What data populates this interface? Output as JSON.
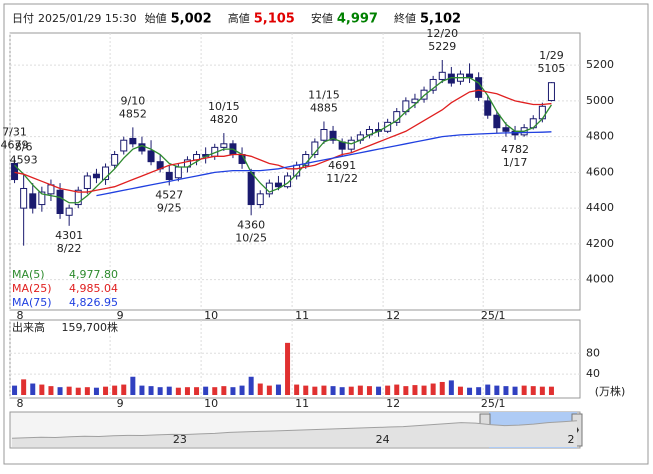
{
  "header": {
    "date_label": "日付",
    "date": "2025/01/29 15:30",
    "fields": [
      {
        "label": "始値",
        "value": "5,002",
        "color": "#000000"
      },
      {
        "label": "高値",
        "value": "5,105",
        "color": "#e00000"
      },
      {
        "label": "安値",
        "value": "4,997",
        "color": "#008000"
      },
      {
        "label": "終値",
        "value": "5,102",
        "color": "#000000"
      }
    ]
  },
  "chart_data": [
    {
      "type": "candlestick",
      "categories": [
        "8",
        null,
        null,
        null,
        null,
        null,
        null,
        null,
        null,
        null,
        null,
        "9",
        null,
        null,
        null,
        null,
        null,
        null,
        null,
        null,
        null,
        "10",
        null,
        null,
        null,
        null,
        null,
        null,
        null,
        null,
        null,
        "11",
        null,
        null,
        null,
        null,
        null,
        null,
        null,
        null,
        null,
        "12",
        null,
        null,
        null,
        null,
        null,
        null,
        null,
        null,
        null,
        null,
        "25/1",
        null,
        null,
        null,
        null,
        null,
        null,
        null
      ],
      "open": [
        4650,
        4400,
        4480,
        4420,
        4480,
        4500,
        4360,
        4420,
        4510,
        4590,
        4560,
        4640,
        4720,
        4790,
        4760,
        4720,
        4660,
        4600,
        4570,
        4630,
        4670,
        4700,
        4690,
        4740,
        4760,
        4700,
        4600,
        4420,
        4480,
        4540,
        4520,
        4580,
        4640,
        4700,
        4780,
        4830,
        4770,
        4730,
        4780,
        4810,
        4840,
        4830,
        4880,
        4940,
        4990,
        5010,
        5060,
        5120,
        5150,
        5110,
        5150,
        5130,
        5000,
        4920,
        4850,
        4830,
        4810,
        4850,
        4900,
        5002
      ],
      "high": [
        4679,
        4593,
        4540,
        4520,
        4560,
        4540,
        4420,
        4520,
        4600,
        4620,
        4650,
        4720,
        4800,
        4852,
        4800,
        4780,
        4700,
        4640,
        4650,
        4690,
        4720,
        4740,
        4760,
        4820,
        4780,
        4740,
        4620,
        4500,
        4560,
        4580,
        4600,
        4660,
        4720,
        4790,
        4885,
        4860,
        4790,
        4800,
        4830,
        4860,
        4880,
        4900,
        4960,
        5020,
        5040,
        5080,
        5140,
        5229,
        5190,
        5170,
        5210,
        5160,
        5030,
        4940,
        4880,
        4860,
        4870,
        4920,
        4990,
        5105
      ],
      "low": [
        4540,
        4190,
        4370,
        4380,
        4440,
        4340,
        4301,
        4400,
        4480,
        4540,
        4530,
        4620,
        4700,
        4740,
        4700,
        4640,
        4600,
        4527,
        4550,
        4600,
        4640,
        4650,
        4670,
        4720,
        4680,
        4620,
        4360,
        4400,
        4460,
        4500,
        4510,
        4560,
        4620,
        4680,
        4760,
        4760,
        4691,
        4710,
        4760,
        4790,
        4800,
        4820,
        4860,
        4920,
        4960,
        4990,
        5040,
        5100,
        5080,
        5090,
        5100,
        5000,
        4900,
        4820,
        4800,
        4782,
        4800,
        4840,
        4880,
        4997
      ],
      "close": [
        4560,
        4510,
        4400,
        4490,
        4530,
        4370,
        4400,
        4500,
        4580,
        4570,
        4630,
        4700,
        4780,
        4760,
        4720,
        4660,
        4620,
        4560,
        4630,
        4670,
        4700,
        4690,
        4740,
        4760,
        4700,
        4650,
        4420,
        4480,
        4540,
        4520,
        4580,
        4640,
        4700,
        4770,
        4840,
        4780,
        4730,
        4780,
        4810,
        4840,
        4830,
        4880,
        4940,
        5000,
        5010,
        5060,
        5120,
        5160,
        5100,
        5150,
        5130,
        5020,
        4920,
        4850,
        4830,
        4810,
        4850,
        4900,
        4970,
        5102
      ],
      "series": [
        {
          "name": "MA(5)",
          "color": "#2e8b2e",
          "legend_value": "4,977.80",
          "values": [
            4640,
            4590,
            4530,
            4480,
            4470,
            4460,
            4430,
            4430,
            4470,
            4520,
            4570,
            4620,
            4680,
            4730,
            4750,
            4730,
            4700,
            4650,
            4630,
            4630,
            4660,
            4690,
            4710,
            4730,
            4730,
            4700,
            4600,
            4540,
            4490,
            4510,
            4540,
            4590,
            4650,
            4710,
            4770,
            4790,
            4770,
            4760,
            4780,
            4810,
            4830,
            4860,
            4890,
            4940,
            4980,
            5030,
            5070,
            5110,
            5130,
            5130,
            5130,
            5100,
            5030,
            4940,
            4870,
            4830,
            4830,
            4850,
            4900,
            4977.8
          ]
        },
        {
          "name": "MA(25)",
          "color": "#e02020",
          "legend_value": "4,985.04",
          "values": [
            4600,
            4590,
            4570,
            4550,
            4530,
            4510,
            4500,
            4490,
            4490,
            4500,
            4510,
            4520,
            4540,
            4560,
            4580,
            4600,
            4620,
            4640,
            4650,
            4660,
            4670,
            4680,
            4690,
            4690,
            4700,
            4700,
            4690,
            4670,
            4650,
            4640,
            4620,
            4620,
            4630,
            4640,
            4660,
            4680,
            4700,
            4710,
            4730,
            4750,
            4770,
            4790,
            4810,
            4830,
            4860,
            4890,
            4920,
            4950,
            4990,
            5020,
            5050,
            5060,
            5050,
            5040,
            5020,
            5000,
            4990,
            4980,
            4980,
            4985.04
          ]
        },
        {
          "name": "MA(75)",
          "color": "#2040e0",
          "legend_value": "4,826.95",
          "values": [
            null,
            null,
            null,
            null,
            null,
            null,
            null,
            null,
            null,
            4470,
            4480,
            4490,
            4500,
            4510,
            4520,
            4530,
            4540,
            4550,
            4560,
            4570,
            4580,
            4590,
            4600,
            4605,
            4610,
            4610,
            4610,
            4610,
            4615,
            4620,
            4630,
            4640,
            4650,
            4660,
            4670,
            4680,
            4690,
            4700,
            4710,
            4720,
            4730,
            4740,
            4750,
            4760,
            4770,
            4780,
            4790,
            4800,
            4805,
            4810,
            4812,
            4815,
            4817,
            4819,
            4821,
            4822,
            4823,
            4824,
            4825,
            4826.95
          ]
        }
      ],
      "annotations": [
        {
          "date": "7/31",
          "price": 4679,
          "side": "above"
        },
        {
          "date": "8/6",
          "price": 4593,
          "side": "above"
        },
        null,
        null,
        null,
        null,
        {
          "date": "8/22",
          "price": 4301,
          "side": "below"
        },
        null,
        null,
        null,
        null,
        null,
        null,
        {
          "date": "9/10",
          "price": 4852,
          "side": "above"
        },
        null,
        null,
        null,
        {
          "date": "9/25",
          "price": 4527,
          "side": "below"
        },
        null,
        null,
        null,
        null,
        null,
        {
          "date": "10/15",
          "price": 4820,
          "side": "above"
        },
        null,
        null,
        {
          "date": "10/25",
          "price": 4360,
          "side": "below"
        },
        null,
        null,
        null,
        null,
        null,
        null,
        null,
        {
          "date": "11/15",
          "price": 4885,
          "side": "above"
        },
        null,
        {
          "date": "11/22",
          "price": 4691,
          "side": "below"
        },
        null,
        null,
        null,
        null,
        null,
        null,
        null,
        null,
        null,
        null,
        {
          "date": "12/20",
          "price": 5229,
          "side": "above"
        },
        null,
        null,
        null,
        null,
        null,
        null,
        null,
        {
          "date": "1/17",
          "price": 4782,
          "side": "below"
        },
        null,
        null,
        null,
        {
          "date": "1/29",
          "price": 5105,
          "side": "above"
        }
      ],
      "ylim": [
        3830,
        5380
      ],
      "yticks": [
        4000,
        4200,
        4400,
        4600,
        4800,
        5000,
        5200
      ],
      "grid": true
    },
    {
      "type": "bar",
      "title": "出来高",
      "latest_label": "159,700株",
      "unit_label": "(万株)",
      "categories": [
        "8",
        null,
        null,
        null,
        null,
        null,
        null,
        null,
        null,
        null,
        null,
        "9",
        null,
        null,
        null,
        null,
        null,
        null,
        null,
        null,
        null,
        "10",
        null,
        null,
        null,
        null,
        null,
        null,
        null,
        null,
        null,
        "11",
        null,
        null,
        null,
        null,
        null,
        null,
        null,
        null,
        null,
        "12",
        null,
        null,
        null,
        null,
        null,
        null,
        null,
        null,
        null,
        null,
        "25/1",
        null,
        null,
        null,
        null,
        null,
        null,
        null
      ],
      "values": [
        18,
        30,
        22,
        20,
        17,
        15,
        16,
        14,
        15,
        14,
        16,
        18,
        20,
        35,
        18,
        17,
        15,
        16,
        14,
        15,
        15,
        16,
        15,
        17,
        15,
        18,
        35,
        22,
        18,
        20,
        100,
        20,
        18,
        16,
        18,
        17,
        15,
        16,
        18,
        17,
        16,
        18,
        20,
        17,
        19,
        18,
        22,
        25,
        28,
        16,
        14,
        15,
        20,
        18,
        17,
        16,
        18,
        17,
        16,
        15.97
      ],
      "ylim": [
        0,
        140
      ],
      "yticks": [
        40,
        80
      ],
      "grid": true
    },
    {
      "type": "area",
      "color": "#a0a0a0",
      "values": [
        3300,
        3350,
        3400,
        3380,
        3450,
        3500,
        3480,
        3550,
        3600,
        3580,
        3650,
        3700,
        3680,
        3750,
        3800,
        3900,
        3950,
        4000,
        4050,
        4100,
        4150,
        4200,
        4250,
        4300,
        4350,
        4400,
        4450,
        4500,
        4600,
        4700,
        4800,
        4900,
        4850,
        4700,
        4600,
        4650,
        4750,
        4900,
        5000,
        5100
      ],
      "labels": [
        null,
        null,
        null,
        null,
        null,
        null,
        null,
        null,
        null,
        null,
        null,
        null,
        "23",
        null,
        null,
        null,
        null,
        null,
        null,
        null,
        null,
        null,
        null,
        null,
        null,
        null,
        "24",
        null,
        null,
        null,
        null,
        null,
        null,
        null,
        null,
        null,
        null,
        null,
        null,
        "2"
      ],
      "ylim": [
        2500,
        6000
      ]
    }
  ]
}
